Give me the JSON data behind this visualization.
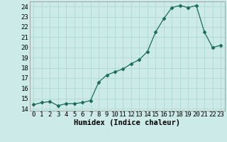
{
  "x": [
    0,
    1,
    2,
    3,
    4,
    5,
    6,
    7,
    8,
    9,
    10,
    11,
    12,
    13,
    14,
    15,
    16,
    17,
    18,
    19,
    20,
    21,
    22,
    23
  ],
  "y": [
    14.4,
    14.6,
    14.7,
    14.3,
    14.5,
    14.5,
    14.6,
    14.8,
    16.6,
    17.3,
    17.6,
    17.9,
    18.4,
    18.8,
    19.6,
    21.5,
    22.8,
    23.9,
    24.1,
    23.9,
    24.1,
    21.5,
    20.0,
    20.2
  ],
  "line_color": "#1a6b5a",
  "marker": "D",
  "marker_size": 2.5,
  "xlabel": "Humidex (Indice chaleur)",
  "xlim": [
    -0.5,
    23.5
  ],
  "ylim": [
    13.8,
    24.5
  ],
  "yticks": [
    14,
    15,
    16,
    17,
    18,
    19,
    20,
    21,
    22,
    23,
    24
  ],
  "xticks": [
    0,
    1,
    2,
    3,
    4,
    5,
    6,
    7,
    8,
    9,
    10,
    11,
    12,
    13,
    14,
    15,
    16,
    17,
    18,
    19,
    20,
    21,
    22,
    23
  ],
  "bg_color": "#cceae7",
  "grid_color": "#b0d8d4",
  "label_fontsize": 7.5,
  "tick_fontsize": 6.5
}
